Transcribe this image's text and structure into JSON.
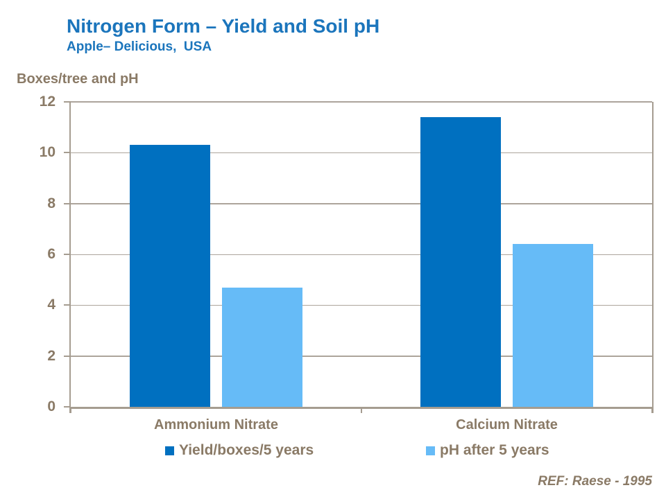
{
  "header": {
    "title": "Nitrogen Form – Yield and Soil pH",
    "subtitle": "Apple– Delicious,  USA"
  },
  "axis_title": "Boxes/tree and pH",
  "footer": {
    "ref": "REF: Raese - 1995"
  },
  "legend": {
    "items": [
      {
        "label": "Yield/boxes/5 years",
        "color": "#0070C0"
      },
      {
        "label": "pH after 5 years",
        "color": "#66BBF7"
      }
    ]
  },
  "colors": {
    "title_blue": "#1B75BC",
    "dark_bar_blue": "#0070C0",
    "light_bar_blue": "#66BBF7",
    "text_brown_gray": "#8A7A66",
    "gridline_gray": "#ACA49B",
    "axis_gray": "#A59C90",
    "background": "#FFFFFF"
  },
  "chart_data": {
    "type": "bar",
    "title": "Nitrogen Form – Yield and Soil pH",
    "subtitle": "Apple– Delicious, USA",
    "categories": [
      "Ammonium Nitrate",
      "Calcium Nitrate"
    ],
    "series": [
      {
        "name": "Yield/boxes/5 years",
        "color": "#0070C0",
        "values": [
          10.3,
          11.4
        ]
      },
      {
        "name": "pH after 5 years",
        "color": "#66BBF7",
        "values": [
          4.7,
          6.4
        ]
      }
    ],
    "xlabel": "",
    "ylabel": "Boxes/tree and pH",
    "ylim": [
      0,
      12
    ],
    "yticks": [
      0,
      2,
      4,
      6,
      8,
      10,
      12
    ],
    "grid": true,
    "legend_position": "bottom",
    "plot_border": "top-right",
    "annotation": "REF: Raese - 1995"
  }
}
